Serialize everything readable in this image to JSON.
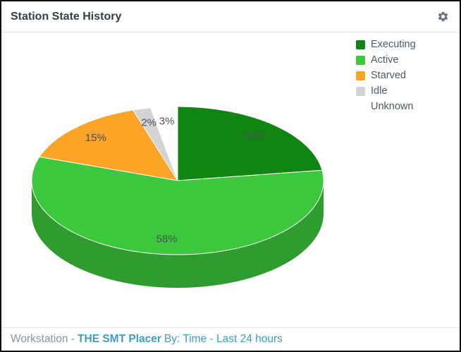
{
  "widget": {
    "title": "Station State History"
  },
  "chart_data": {
    "type": "pie",
    "style": "3d",
    "title": "Station State History",
    "categories": [
      "Executing",
      "Active",
      "Starved",
      "Idle",
      "Unknown"
    ],
    "values": [
      23,
      58,
      15,
      2,
      3
    ],
    "unit": "%",
    "slice_labels": [
      "23%",
      "58%",
      "15%",
      "2%",
      "3%"
    ],
    "colors": [
      "#118511",
      "#3cc83c",
      "#fba425",
      "#d3d3d3",
      "#ffffff"
    ],
    "legend_position": "top-right",
    "start_angle": "12-oclock-clockwise"
  },
  "footer": {
    "scope_label": "Workstation -",
    "workstation_name": "THE SMT Placer",
    "by_label": "By: Time - Last 24 hours"
  },
  "icons": {
    "settings": "gear-icon"
  },
  "colors": {
    "title_text": "#333e48",
    "slice_label_text": "#49525c",
    "legend_text": "#4d5863",
    "footer_muted": "#8593a3",
    "footer_link": "#3d9cc9",
    "gear": "#6b7684",
    "divider": "#e2e2e2",
    "border": "#101010",
    "background": "#ffffff"
  }
}
